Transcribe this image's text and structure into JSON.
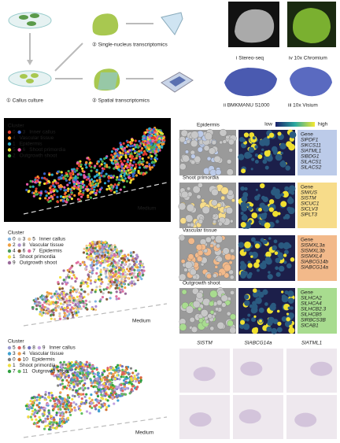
{
  "workflow": {
    "callus": "① Callus culture",
    "single": "② Single-nucleus transcriptomics",
    "spatial": "② Spatial transcriptomics",
    "platforms": [
      "i Stereo-seq",
      "iv 10x Chromium",
      "ii BMKMANU S1000",
      "iii 10x Visium"
    ]
  },
  "clusters": [
    {
      "title": "Cluster",
      "background": "#000000",
      "medium": "Medium",
      "legend": [
        {
          "ids": [
            "0",
            "3"
          ],
          "colors": [
            "#e03a2f",
            "#3a63c9"
          ],
          "label": "Inner callus"
        },
        {
          "ids": [
            "4"
          ],
          "colors": [
            "#f5922a"
          ],
          "label": "Vascular tissue"
        },
        {
          "ids": [
            "1"
          ],
          "colors": [
            "#2aa9c9"
          ],
          "label": "Epidermis"
        },
        {
          "ids": [
            "5",
            "6"
          ],
          "colors": [
            "#f2e230",
            "#e85aa8"
          ],
          "label": "Shoot primordia"
        },
        {
          "ids": [
            "2"
          ],
          "colors": [
            "#4cae4c"
          ],
          "label": "Outgrowth shoot"
        }
      ]
    },
    {
      "title": "Cluster",
      "background": "#ffffff",
      "medium": "Medium",
      "legend": [
        {
          "ids": [
            "0",
            "3",
            "5"
          ],
          "colors": [
            "#7fb3e0",
            "#c7c7c7",
            "#f2c890"
          ],
          "label": "Inner callus"
        },
        {
          "ids": [
            "2",
            "8"
          ],
          "colors": [
            "#f0a040",
            "#b090d0"
          ],
          "label": "Vascular tissue"
        },
        {
          "ids": [
            "4",
            "6",
            "7"
          ],
          "colors": [
            "#4a9a5a",
            "#8a5a3a",
            "#e070a0"
          ],
          "label": "Epidermis"
        },
        {
          "ids": [
            "1"
          ],
          "colors": [
            "#f2e040"
          ],
          "label": "Shoot primordia"
        },
        {
          "ids": [
            "9"
          ],
          "colors": [
            "#9a6a9a"
          ],
          "label": "Outgrowth shoot"
        }
      ]
    },
    {
      "title": "Cluster",
      "background": "#ffffff",
      "medium": "Medium",
      "legend": [
        {
          "ids": [
            "5",
            "6",
            "8",
            "9"
          ],
          "colors": [
            "#9a9ad0",
            "#e06060",
            "#7070c0",
            "#c0a0e0"
          ],
          "label": "Inner callus"
        },
        {
          "ids": [
            "3",
            "4"
          ],
          "colors": [
            "#40a0d0",
            "#f0a050"
          ],
          "label": "Vascular tissue"
        },
        {
          "ids": [
            "0",
            "10"
          ],
          "colors": [
            "#808080",
            "#d07030"
          ],
          "label": "Epidermis"
        },
        {
          "ids": [
            "1"
          ],
          "colors": [
            "#f0e040"
          ],
          "label": "Shoot primordia"
        },
        {
          "ids": [
            "7",
            "11"
          ],
          "colors": [
            "#30a040",
            "#60c060"
          ],
          "label": "Outgrowth shoot"
        }
      ]
    }
  ],
  "colorbar": {
    "low": "low",
    "high": "high"
  },
  "tissues": [
    {
      "name": "Epidermis",
      "color": "#bccbe9",
      "gene_title": "Gene",
      "genes": [
        "SlPDF1",
        "SlKCS11",
        "SlATML1",
        "SlBDG1",
        "SlLACS1",
        "SlLACS2"
      ]
    },
    {
      "name": "Shoot primordia",
      "color": "#f7dc8a",
      "gene_title": "Gene",
      "genes": [
        "SlWUS",
        "SlSTM",
        "SlCUC1",
        "SlCLV3",
        "SlPLT3"
      ]
    },
    {
      "name": "Vascular tissue",
      "color": "#f2b98a",
      "gene_title": "Gene",
      "genes": [
        "SlSMXL3a",
        "SlSMXL3b",
        "SlSMXL4",
        "SlABCG14b",
        "SlABCG14a"
      ]
    },
    {
      "name": "Outgrowth shoot",
      "color": "#a8dc8f",
      "gene_title": "Gene",
      "genes": [
        "SlLHCA2",
        "SlLHCA4",
        "SlLHCB2.3",
        "SlLHCB5",
        "SlRBCS3B",
        "SlCAB1"
      ]
    }
  ],
  "in_situ": [
    "SlSTM",
    "SlABCG14a",
    "SlATML1"
  ]
}
